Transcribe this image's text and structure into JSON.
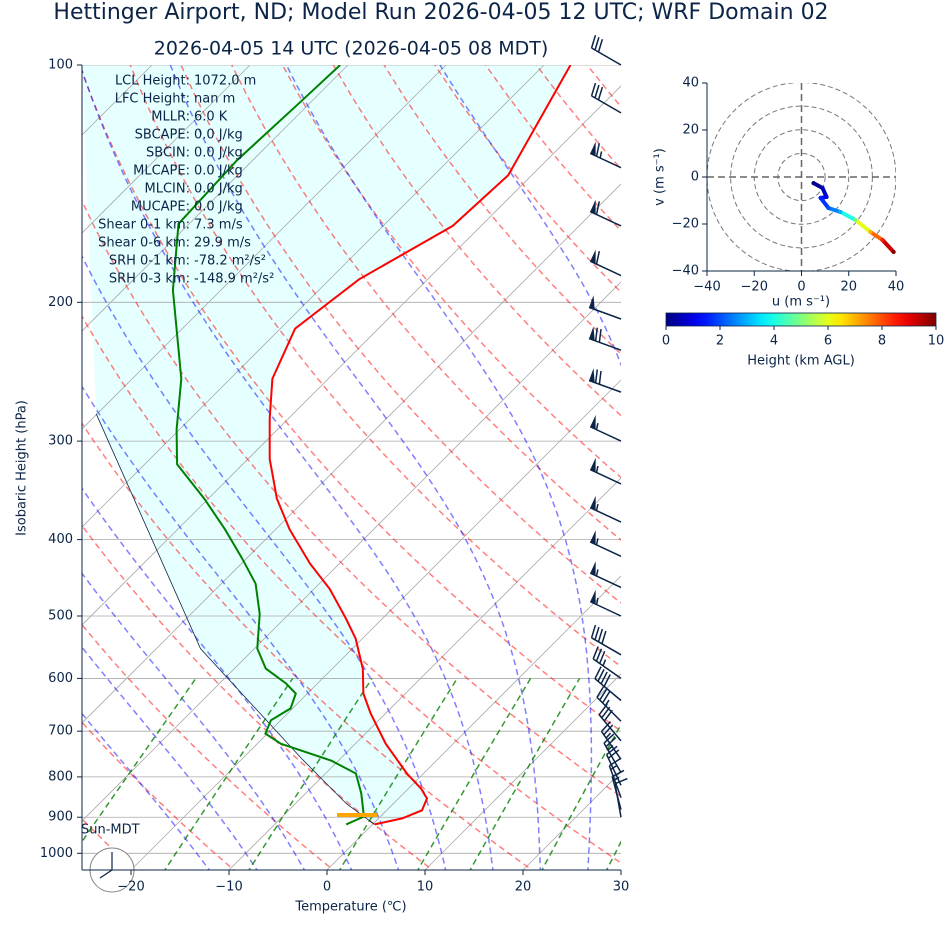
{
  "chart_data": [
    {
      "type": "skewt",
      "title": "Hettinger Airport, ND; Model Run 2026-04-05 12 UTC; WRF Domain 02",
      "subtitle": "2026-04-05 14 UTC  (2026-04-05 08 MDT)",
      "x_label": "Temperature (℃)",
      "y_label": "Isobaric Height (hPa)",
      "xlim": [
        -25,
        30
      ],
      "xticks": [
        {
          "value": -20,
          "label": "−20"
        },
        {
          "value": -10,
          "label": "−10"
        },
        0,
        10,
        20,
        30
      ],
      "ylim": [
        1050,
        100
      ],
      "yticks": [
        100,
        200,
        300,
        400,
        500,
        600,
        700,
        800,
        900,
        1000
      ],
      "log_scale": "y",
      "grid": true,
      "temperature": {
        "color": "#ff0000",
        "pressure": [
          919,
          903,
          882,
          852,
          828,
          792,
          726,
          665,
          627,
          583,
          534,
          504,
          462,
          429,
          388,
          355,
          316,
          281,
          250,
          216,
          187,
          160,
          138,
          100
        ],
        "values": [
          0.2,
          2.4,
          3.6,
          2.9,
          1.3,
          -1.7,
          -6.9,
          -11.5,
          -14.3,
          -16.9,
          -20.7,
          -23.7,
          -28.4,
          -33.0,
          -38.6,
          -43.0,
          -47.8,
          -51.9,
          -55.7,
          -58.5,
          -57.0,
          -52.9,
          -52.4,
          -57.3
        ]
      },
      "dewpoint": {
        "color": "#008000",
        "pressure": [
          919,
          898,
          840,
          792,
          763,
          726,
          705,
          678,
          655,
          627,
          609,
          583,
          550,
          497,
          455,
          423,
          388,
          355,
          321,
          290,
          250,
          193,
          159,
          132,
          112,
          100
        ],
        "values": [
          -2.7,
          -1.7,
          -4.3,
          -6.9,
          -10.7,
          -17.6,
          -20.2,
          -21.0,
          -20.2,
          -21.2,
          -23.2,
          -26.8,
          -29.7,
          -33.0,
          -36.5,
          -40.4,
          -45.2,
          -50.4,
          -56.7,
          -60.3,
          -65.0,
          -74.9,
          -81.1,
          -81.6,
          -81.1,
          -80.8
        ]
      },
      "parcel": {
        "color": "#0b2447",
        "pressure": [
          919,
          865,
          758,
          550,
          277
        ],
        "values": [
          0.2,
          -4.8,
          -14.0,
          -35.5,
          -70.1
        ]
      },
      "winds": {
        "color": "#0b2447",
        "pressure": [
          100,
          115,
          135,
          160,
          185,
          210,
          230,
          260,
          300,
          340,
          380,
          420,
          460,
          500,
          560,
          600,
          640,
          680,
          720,
          760,
          790,
          820,
          850,
          880,
          900
        ],
        "speed": [
          30,
          30,
          65,
          60,
          60,
          50,
          70,
          70,
          55,
          55,
          55,
          55,
          55,
          55,
          40,
          35,
          40,
          35,
          30,
          25,
          25,
          20,
          15,
          15,
          10
        ],
        "direction": [
          300,
          300,
          295,
          295,
          295,
          290,
          290,
          290,
          295,
          295,
          295,
          295,
          295,
          295,
          300,
          305,
          310,
          315,
          320,
          325,
          330,
          335,
          340,
          345,
          350
        ]
      },
      "indices": [
        [
          "LCL Height:",
          "1072.0 m"
        ],
        [
          "LFC Height:",
          "nan m"
        ],
        [
          "MLLR:",
          "6.0 K"
        ],
        [
          "SBCAPE:",
          "0.0 J/kg"
        ],
        [
          "SBCIN:",
          "0.0 J/kg"
        ],
        [
          "MLCAPE:",
          "0.0 J/kg"
        ],
        [
          "MLCIN:",
          "0.0 J/kg"
        ],
        [
          "MUCAPE:",
          "0.0 J/kg"
        ],
        [
          "Shear 0-1 km:",
          "7.3 m/s"
        ],
        [
          "Shear 0-6 km:",
          "29.9 m/s"
        ],
        [
          "SRH 0-1 km:",
          "-78.2 m²/s²"
        ],
        [
          "SRH 0-3 km:",
          "-148.9 m²/s²"
        ]
      ],
      "clock_label": "Sun-MDT"
    },
    {
      "type": "hodograph",
      "x_label": "u (m s⁻¹)",
      "y_label": "v (m s⁻¹)",
      "xlim": [
        -40,
        40
      ],
      "ylim": [
        -40,
        40
      ],
      "xticks": [
        {
          "value": -40,
          "label": "−40"
        },
        {
          "value": -20,
          "label": "−20"
        },
        0,
        20,
        40
      ],
      "yticks": [
        {
          "value": -40,
          "label": "−40"
        },
        {
          "value": -20,
          "label": "−20"
        },
        0,
        20,
        40
      ],
      "rings": [
        10,
        20,
        30,
        40
      ],
      "u": [
        5.1,
        8.9,
        10.6,
        8.1,
        11.4,
        16.5,
        22.9,
        29.2,
        34.3,
        39.0
      ],
      "v": [
        -2.6,
        -4.7,
        -8.5,
        -8.9,
        -13.2,
        -14.9,
        -18.3,
        -23.4,
        -26.8,
        -31.9
      ],
      "height": [
        0,
        0.5,
        1,
        1.5,
        2,
        3,
        5,
        7,
        8.5,
        10
      ],
      "colormap": "jet",
      "colorbar": {
        "label": "Height (km AGL)",
        "lim": [
          0,
          10
        ],
        "ticks": [
          0,
          2,
          4,
          6,
          8,
          10
        ]
      }
    }
  ]
}
